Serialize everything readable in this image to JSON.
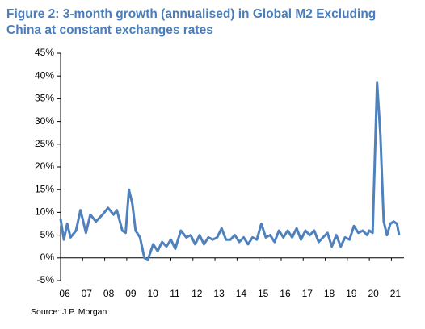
{
  "chart_data": {
    "type": "line",
    "title": [
      "Figure 2: 3-month growth (annualised) in Global M2 Excluding",
      "China at constant exchanges rates"
    ],
    "source": "Source: J.P. Morgan",
    "x": [
      2006.0,
      2006.15,
      2006.3,
      2006.45,
      2006.7,
      2006.9,
      2007.15,
      2007.35,
      2007.6,
      2007.9,
      2008.15,
      2008.4,
      2008.55,
      2008.8,
      2008.95,
      2009.1,
      2009.25,
      2009.4,
      2009.6,
      2009.8,
      2009.95,
      2010.2,
      2010.4,
      2010.6,
      2010.8,
      2011.0,
      2011.2,
      2011.45,
      2011.7,
      2011.9,
      2012.1,
      2012.3,
      2012.5,
      2012.7,
      2012.9,
      2013.1,
      2013.3,
      2013.5,
      2013.7,
      2013.9,
      2014.1,
      2014.3,
      2014.5,
      2014.7,
      2014.9,
      2015.1,
      2015.3,
      2015.5,
      2015.7,
      2015.9,
      2016.1,
      2016.3,
      2016.5,
      2016.7,
      2016.9,
      2017.1,
      2017.3,
      2017.5,
      2017.7,
      2017.9,
      2018.1,
      2018.3,
      2018.5,
      2018.7,
      2018.9,
      2019.1,
      2019.3,
      2019.5,
      2019.7,
      2019.9,
      2020.0,
      2020.15,
      2020.35,
      2020.5,
      2020.65,
      2020.8,
      2020.95,
      2021.1,
      2021.25,
      2021.35
    ],
    "series": [
      {
        "name": "Global M2 ex China",
        "color": "#4f81bd",
        "values": [
          8.5,
          4,
          7.5,
          4.5,
          6,
          10.5,
          5.5,
          9.5,
          8,
          9.5,
          11,
          9.5,
          10.5,
          6,
          5.5,
          15,
          12,
          6,
          4.5,
          0,
          -0.5,
          3,
          1.5,
          3.5,
          2.5,
          4,
          2,
          6,
          4.5,
          5,
          3,
          5,
          3,
          4.5,
          4,
          4.5,
          6.5,
          4,
          4,
          5,
          3.5,
          4.5,
          3,
          4.5,
          4,
          7.5,
          4.5,
          5,
          3.5,
          6,
          4.5,
          6,
          4.5,
          6.5,
          4,
          6,
          5,
          6,
          3.5,
          4.5,
          5.5,
          2.5,
          5,
          2.5,
          4.5,
          4,
          7,
          5.5,
          6,
          5,
          6,
          5.5,
          38.5,
          27,
          8,
          5,
          7.5,
          8,
          7.5,
          5
        ]
      }
    ],
    "xlim": [
      2006,
      2021.57
    ],
    "xticks": [
      {
        "value": 2006,
        "label": "06"
      },
      {
        "value": 2007,
        "label": "07"
      },
      {
        "value": 2008,
        "label": "08"
      },
      {
        "value": 2009,
        "label": "09"
      },
      {
        "value": 2010,
        "label": "10"
      },
      {
        "value": 2011,
        "label": "11"
      },
      {
        "value": 2012,
        "label": "12"
      },
      {
        "value": 2013,
        "label": "13"
      },
      {
        "value": 2014,
        "label": "14"
      },
      {
        "value": 2015,
        "label": "15"
      },
      {
        "value": 2016,
        "label": "16"
      },
      {
        "value": 2017,
        "label": "17"
      },
      {
        "value": 2018,
        "label": "18"
      },
      {
        "value": 2019,
        "label": "19"
      },
      {
        "value": 2020,
        "label": "20"
      },
      {
        "value": 2021,
        "label": "21"
      }
    ],
    "ylim": [
      -5,
      45
    ],
    "yticks": [
      {
        "value": 45,
        "label": "45%"
      },
      {
        "value": 40,
        "label": "40%"
      },
      {
        "value": 35,
        "label": "35%"
      },
      {
        "value": 30,
        "label": "30%"
      },
      {
        "value": 25,
        "label": "25%"
      },
      {
        "value": 20,
        "label": "20%"
      },
      {
        "value": 15,
        "label": "15%"
      },
      {
        "value": 10,
        "label": "10%"
      },
      {
        "value": 5,
        "label": "5%"
      },
      {
        "value": 0,
        "label": "0%"
      },
      {
        "value": -5,
        "label": "-5%"
      }
    ],
    "grid": false
  }
}
